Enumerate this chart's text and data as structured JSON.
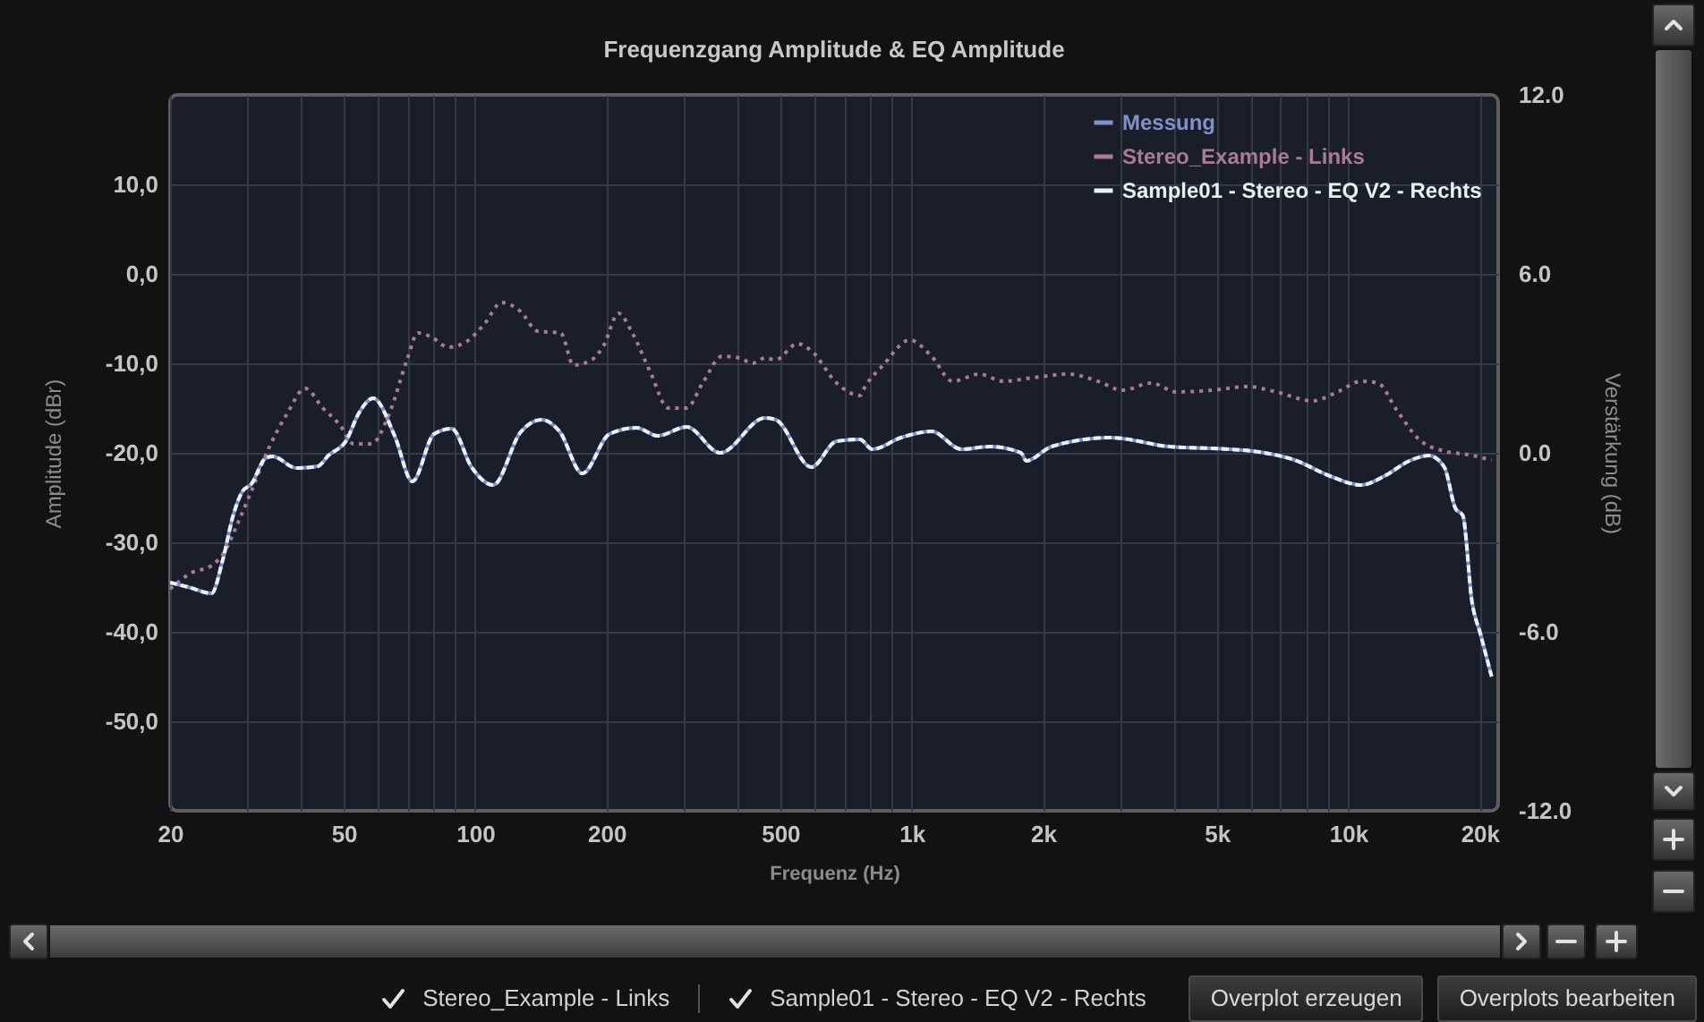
{
  "chart_data": {
    "type": "line",
    "title": "Frequenzgang Amplitude & EQ Amplitude",
    "xlabel": "Frequenz (Hz)",
    "ylabel": "Amplitude (dBr)",
    "y2label": "Verstärkung (dB)",
    "xlim": [
      20,
      22050
    ],
    "xticks": [
      20,
      {
        "value": 30,
        "label": null
      },
      {
        "value": 40,
        "label": null
      },
      50,
      {
        "value": 60,
        "label": null
      },
      {
        "value": 70,
        "label": null
      },
      {
        "value": 80,
        "label": null
      },
      {
        "value": 90,
        "label": null
      },
      100,
      200,
      {
        "value": 300,
        "label": null
      },
      {
        "value": 400,
        "label": null
      },
      500,
      {
        "value": 600,
        "label": null
      },
      {
        "value": 700,
        "label": null
      },
      {
        "value": 800,
        "label": null
      },
      {
        "value": 900,
        "label": null
      },
      {
        "value": 1000,
        "label": "1k"
      },
      {
        "value": 2000,
        "label": "2k"
      },
      {
        "value": 3000,
        "label": null
      },
      {
        "value": 4000,
        "label": null
      },
      {
        "value": 5000,
        "label": "5k"
      },
      {
        "value": 6000,
        "label": null
      },
      {
        "value": 7000,
        "label": null
      },
      {
        "value": 8000,
        "label": null
      },
      {
        "value": 9000,
        "label": null
      },
      {
        "value": 10000,
        "label": "10k"
      },
      {
        "value": 20000,
        "label": "20k"
      }
    ],
    "ylim": [
      -60,
      20
    ],
    "yticks": [
      {
        "value": 10,
        "label": "10,0"
      },
      {
        "value": 0,
        "label": "0,0"
      },
      {
        "value": -10,
        "label": "-10,0"
      },
      {
        "value": -20,
        "label": "-20,0"
      },
      {
        "value": -30,
        "label": "-30,0"
      },
      {
        "value": -40,
        "label": "-40,0"
      },
      {
        "value": -50,
        "label": "-50,0"
      }
    ],
    "y2lim": [
      -12,
      12
    ],
    "y2ticks": [
      {
        "value": 12,
        "label": "12.0"
      },
      {
        "value": 6,
        "label": "6.0"
      },
      {
        "value": 0,
        "label": "0.0"
      },
      {
        "value": -6,
        "label": "-6.0"
      },
      {
        "value": -12,
        "label": "-12.0"
      }
    ],
    "log": "x",
    "grid": true,
    "legend": "top right",
    "series": [
      {
        "name": "Messung",
        "color": "#8190c8",
        "line_style": "solid",
        "x": [
          20,
          22,
          24.9,
          26.4,
          27.9,
          29.3,
          30.7,
          33.1,
          34.4,
          38.9,
          43.6,
          46.1,
          50.7,
          54.1,
          58.4,
          65.4,
          71.8,
          80.5,
          88.4,
          98.1,
          110,
          127,
          142,
          156,
          176,
          203,
          234,
          262,
          305,
          364,
          461,
          488,
          589,
          673,
          761,
          812,
          945,
          1110,
          1300,
          1510,
          1780,
          1830,
          2090,
          2850,
          3890,
          5360,
          6240,
          7530,
          9090,
          10700,
          12100,
          13800,
          15300,
          16600,
          17600,
          18300,
          19200,
          20100,
          21300
        ],
        "values": [
          -34.5,
          -35,
          -35.7,
          -32,
          -27,
          -24.3,
          -23.5,
          -20.6,
          -20.4,
          -21.7,
          -21.5,
          -20.3,
          -18.6,
          -15.6,
          -13.9,
          -18.1,
          -23.2,
          -17.9,
          -17.3,
          -21.6,
          -23.6,
          -17.7,
          -16.3,
          -17.6,
          -22.3,
          -17.9,
          -17.2,
          -18.1,
          -17.1,
          -20,
          -16.1,
          -16.3,
          -21.6,
          -18.7,
          -18.5,
          -19.6,
          -18.3,
          -17.6,
          -19.6,
          -19.3,
          -20,
          -20.9,
          -19.3,
          -18.3,
          -19.3,
          -19.6,
          -19.9,
          -20.8,
          -22.6,
          -23.6,
          -22.6,
          -20.9,
          -20.3,
          -21.6,
          -26.2,
          -27,
          -36.6,
          -40.3,
          -45
        ]
      },
      {
        "name": "Stereo_Example - Links",
        "color": "#a87a9a",
        "line_style": "dotted",
        "x": [
          20,
          22.4,
          24.9,
          26.7,
          28.5,
          30.7,
          33.8,
          37.1,
          40.8,
          44.8,
          49.2,
          52.6,
          57.8,
          63.6,
          69.8,
          73.9,
          79,
          86.8,
          95.3,
          105,
          115,
          127,
          139,
          157,
          168,
          185,
          197,
          213,
          229,
          252,
          277,
          305,
          332,
          368,
          404,
          432,
          461,
          488,
          547,
          589,
          673,
          761,
          782,
          860,
          990,
          1110,
          1240,
          1430,
          1620,
          1900,
          2290,
          2670,
          3040,
          3540,
          4040,
          4880,
          5890,
          6850,
          8280,
          9450,
          10700,
          11700,
          12900,
          14600,
          16600,
          18800,
          21300
        ],
        "values": [
          -35.2,
          -33.4,
          -32.6,
          -31,
          -28,
          -24.3,
          -19.3,
          -15.6,
          -12.8,
          -15,
          -17,
          -19,
          -19,
          -15.6,
          -9.6,
          -6.6,
          -7,
          -8.2,
          -7.6,
          -5.6,
          -3.2,
          -4.2,
          -6.4,
          -6.6,
          -10.2,
          -9.6,
          -8,
          -4.4,
          -6.6,
          -11,
          -15,
          -15,
          -12.2,
          -9.2,
          -9.4,
          -10,
          -9.4,
          -9.6,
          -7.8,
          -8.6,
          -12.2,
          -13.6,
          -12.6,
          -10.2,
          -7.4,
          -9.2,
          -12,
          -11.2,
          -12,
          -11.6,
          -11.2,
          -12,
          -13,
          -12.2,
          -13.2,
          -13,
          -12.6,
          -13.2,
          -14.2,
          -13.2,
          -12,
          -12.2,
          -15.2,
          -18.6,
          -19.8,
          -20.2,
          -20.8
        ]
      },
      {
        "name": "Sample01 - Stereo - EQ V2 - Rechts",
        "color": "#e6f2f4",
        "line_style": "dashed",
        "x": [
          20,
          22,
          24.9,
          26.4,
          27.9,
          29.3,
          30.7,
          33.1,
          34.4,
          38.9,
          43.6,
          46.1,
          50.7,
          54.1,
          58.4,
          65.4,
          71.8,
          80.5,
          88.4,
          98.1,
          110,
          127,
          142,
          156,
          176,
          203,
          234,
          262,
          305,
          364,
          461,
          488,
          589,
          673,
          761,
          812,
          945,
          1110,
          1300,
          1510,
          1780,
          1830,
          2090,
          2850,
          3890,
          5360,
          6240,
          7530,
          9090,
          10700,
          12100,
          13800,
          15300,
          16600,
          17600,
          18300,
          19200,
          20100,
          21300
        ],
        "values": [
          -34.5,
          -35,
          -35.7,
          -32,
          -27,
          -24.3,
          -23.5,
          -20.6,
          -20.4,
          -21.7,
          -21.5,
          -20.3,
          -18.6,
          -15.6,
          -13.9,
          -18.1,
          -23.2,
          -17.9,
          -17.3,
          -21.6,
          -23.6,
          -17.7,
          -16.3,
          -17.6,
          -22.3,
          -17.9,
          -17.2,
          -18.1,
          -17.1,
          -20,
          -16.1,
          -16.3,
          -21.6,
          -18.7,
          -18.5,
          -19.6,
          -18.3,
          -17.6,
          -19.6,
          -19.3,
          -20,
          -20.9,
          -19.3,
          -18.3,
          -19.3,
          -19.6,
          -19.9,
          -20.8,
          -22.6,
          -23.6,
          -22.6,
          -20.9,
          -20.3,
          -21.6,
          -26.2,
          -27,
          -36.6,
          -40.3,
          -45
        ]
      }
    ],
    "annotations": [
      "Stereo_Example - Links",
      "Sample01 - Stereo - EQ V2 - Rechts",
      "Overplot erzeugen",
      "Overplots bearbeiten"
    ]
  }
}
